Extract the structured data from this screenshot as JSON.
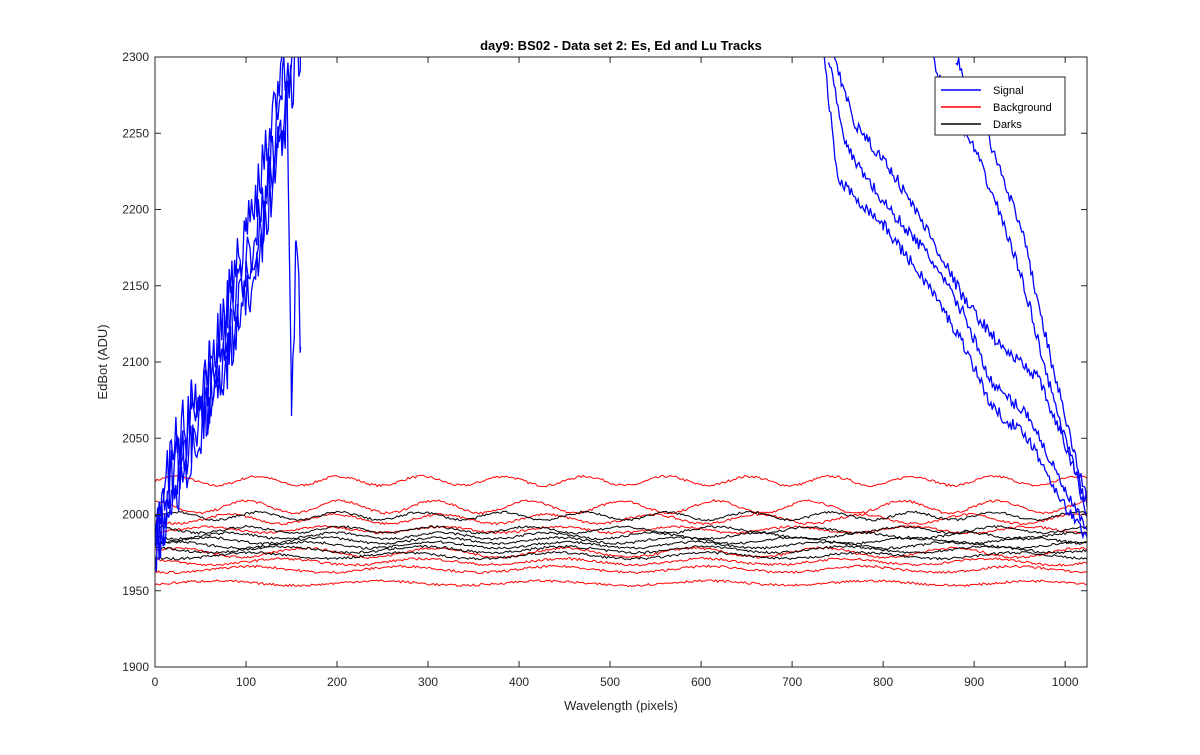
{
  "colors": {
    "signal": "#0000FF",
    "background": "#FF0000",
    "darks": "#000000",
    "axes": "#262626"
  },
  "chart_data": {
    "type": "line",
    "title": "day9: BS02 - Data set 2: Es, Ed and Lu Tracks",
    "xlabel": "Wavelength (pixels)",
    "ylabel": "EdBot (ADU)",
    "xlim": [
      0,
      1024
    ],
    "ylim": [
      1900,
      2300
    ],
    "xticks": [
      0,
      100,
      200,
      300,
      400,
      500,
      600,
      700,
      800,
      900,
      1000
    ],
    "yticks": [
      1900,
      1950,
      2000,
      2050,
      2100,
      2150,
      2200,
      2250,
      2300
    ],
    "grid": false,
    "box": true,
    "legend": {
      "placement": "top-right",
      "entries": [
        {
          "label": "Signal",
          "color": "#0000FF"
        },
        {
          "label": "Background",
          "color": "#FF0000"
        },
        {
          "label": "Darks",
          "color": "#000000"
        }
      ]
    },
    "series_groups": [
      {
        "name": "Signal",
        "color": "#0000FF",
        "traces": [
          {
            "x": [
              0,
              20,
              40,
              60,
              80,
              100,
              120,
              140,
              160
            ],
            "y": [
              1972,
              2015,
              2040,
              2065,
              2100,
              2140,
              2190,
              2250,
              2310
            ]
          },
          {
            "x": [
              0,
              20,
              40,
              60,
              80,
              100,
              120,
              140,
              160
            ],
            "y": [
              1980,
              2030,
              2060,
              2085,
              2120,
              2165,
              2210,
              2280,
              2320
            ]
          },
          {
            "x": [
              0,
              20,
              40,
              60,
              80,
              100,
              120,
              140
            ],
            "y": [
              1990,
              2040,
              2070,
              2100,
              2140,
              2185,
              2235,
              2300
            ]
          },
          {
            "x": [
              0,
              20,
              40,
              60,
              80,
              100,
              120,
              145,
              150,
              155,
              160
            ],
            "y": [
              1976,
              2020,
              2048,
              2075,
              2110,
              2150,
              2200,
              2270,
              2065,
              2180,
              2110
            ]
          },
          {
            "x": [
              735,
              750,
              800,
              850,
              890,
              920,
              960,
              1000,
              1024
            ],
            "y": [
              2300,
              2220,
              2190,
              2150,
              2110,
              2070,
              2050,
              2005,
              1985
            ]
          },
          {
            "x": [
              740,
              760,
              800,
              850,
              890,
              920,
              960,
              1000,
              1024
            ],
            "y": [
              2300,
              2240,
              2205,
              2170,
              2130,
              2085,
              2065,
              2015,
              1990
            ]
          },
          {
            "x": [
              745,
              770,
              810,
              850,
              890,
              930,
              970,
              1010,
              1024
            ],
            "y": [
              2300,
              2255,
              2225,
              2185,
              2140,
              2110,
              2090,
              2030,
              1998
            ]
          },
          {
            "x": [
              855,
              870,
              900,
              930,
              955,
              985,
              1010,
              1024
            ],
            "y": [
              2300,
              2270,
              2240,
              2195,
              2150,
              2080,
              2030,
              2005
            ]
          },
          {
            "x": [
              880,
              900,
              930,
              955,
              985,
              1010,
              1024
            ],
            "y": [
              2300,
              2270,
              2225,
              2180,
              2100,
              2040,
              2010
            ]
          }
        ]
      },
      {
        "name": "Background",
        "color": "#FF0000",
        "traces": [
          {
            "base": 2022,
            "amp": 3
          },
          {
            "base": 2005,
            "amp": 4
          },
          {
            "base": 1997,
            "amp": 3
          },
          {
            "base": 1990,
            "amp": 2
          },
          {
            "base": 1975,
            "amp": 3
          },
          {
            "base": 1969,
            "amp": 2
          },
          {
            "base": 1964,
            "amp": 2
          },
          {
            "base": 1955,
            "amp": 1.5
          }
        ]
      },
      {
        "name": "Darks",
        "color": "#000000",
        "traces": [
          {
            "base": 1999,
            "amp": 2.5
          },
          {
            "base": 1990,
            "amp": 2
          },
          {
            "base": 1986,
            "amp": 2
          },
          {
            "base": 1983,
            "amp": 2
          },
          {
            "base": 1980,
            "amp": 2
          },
          {
            "base": 1977,
            "amp": 2
          },
          {
            "base": 1973,
            "amp": 2
          }
        ]
      }
    ]
  }
}
